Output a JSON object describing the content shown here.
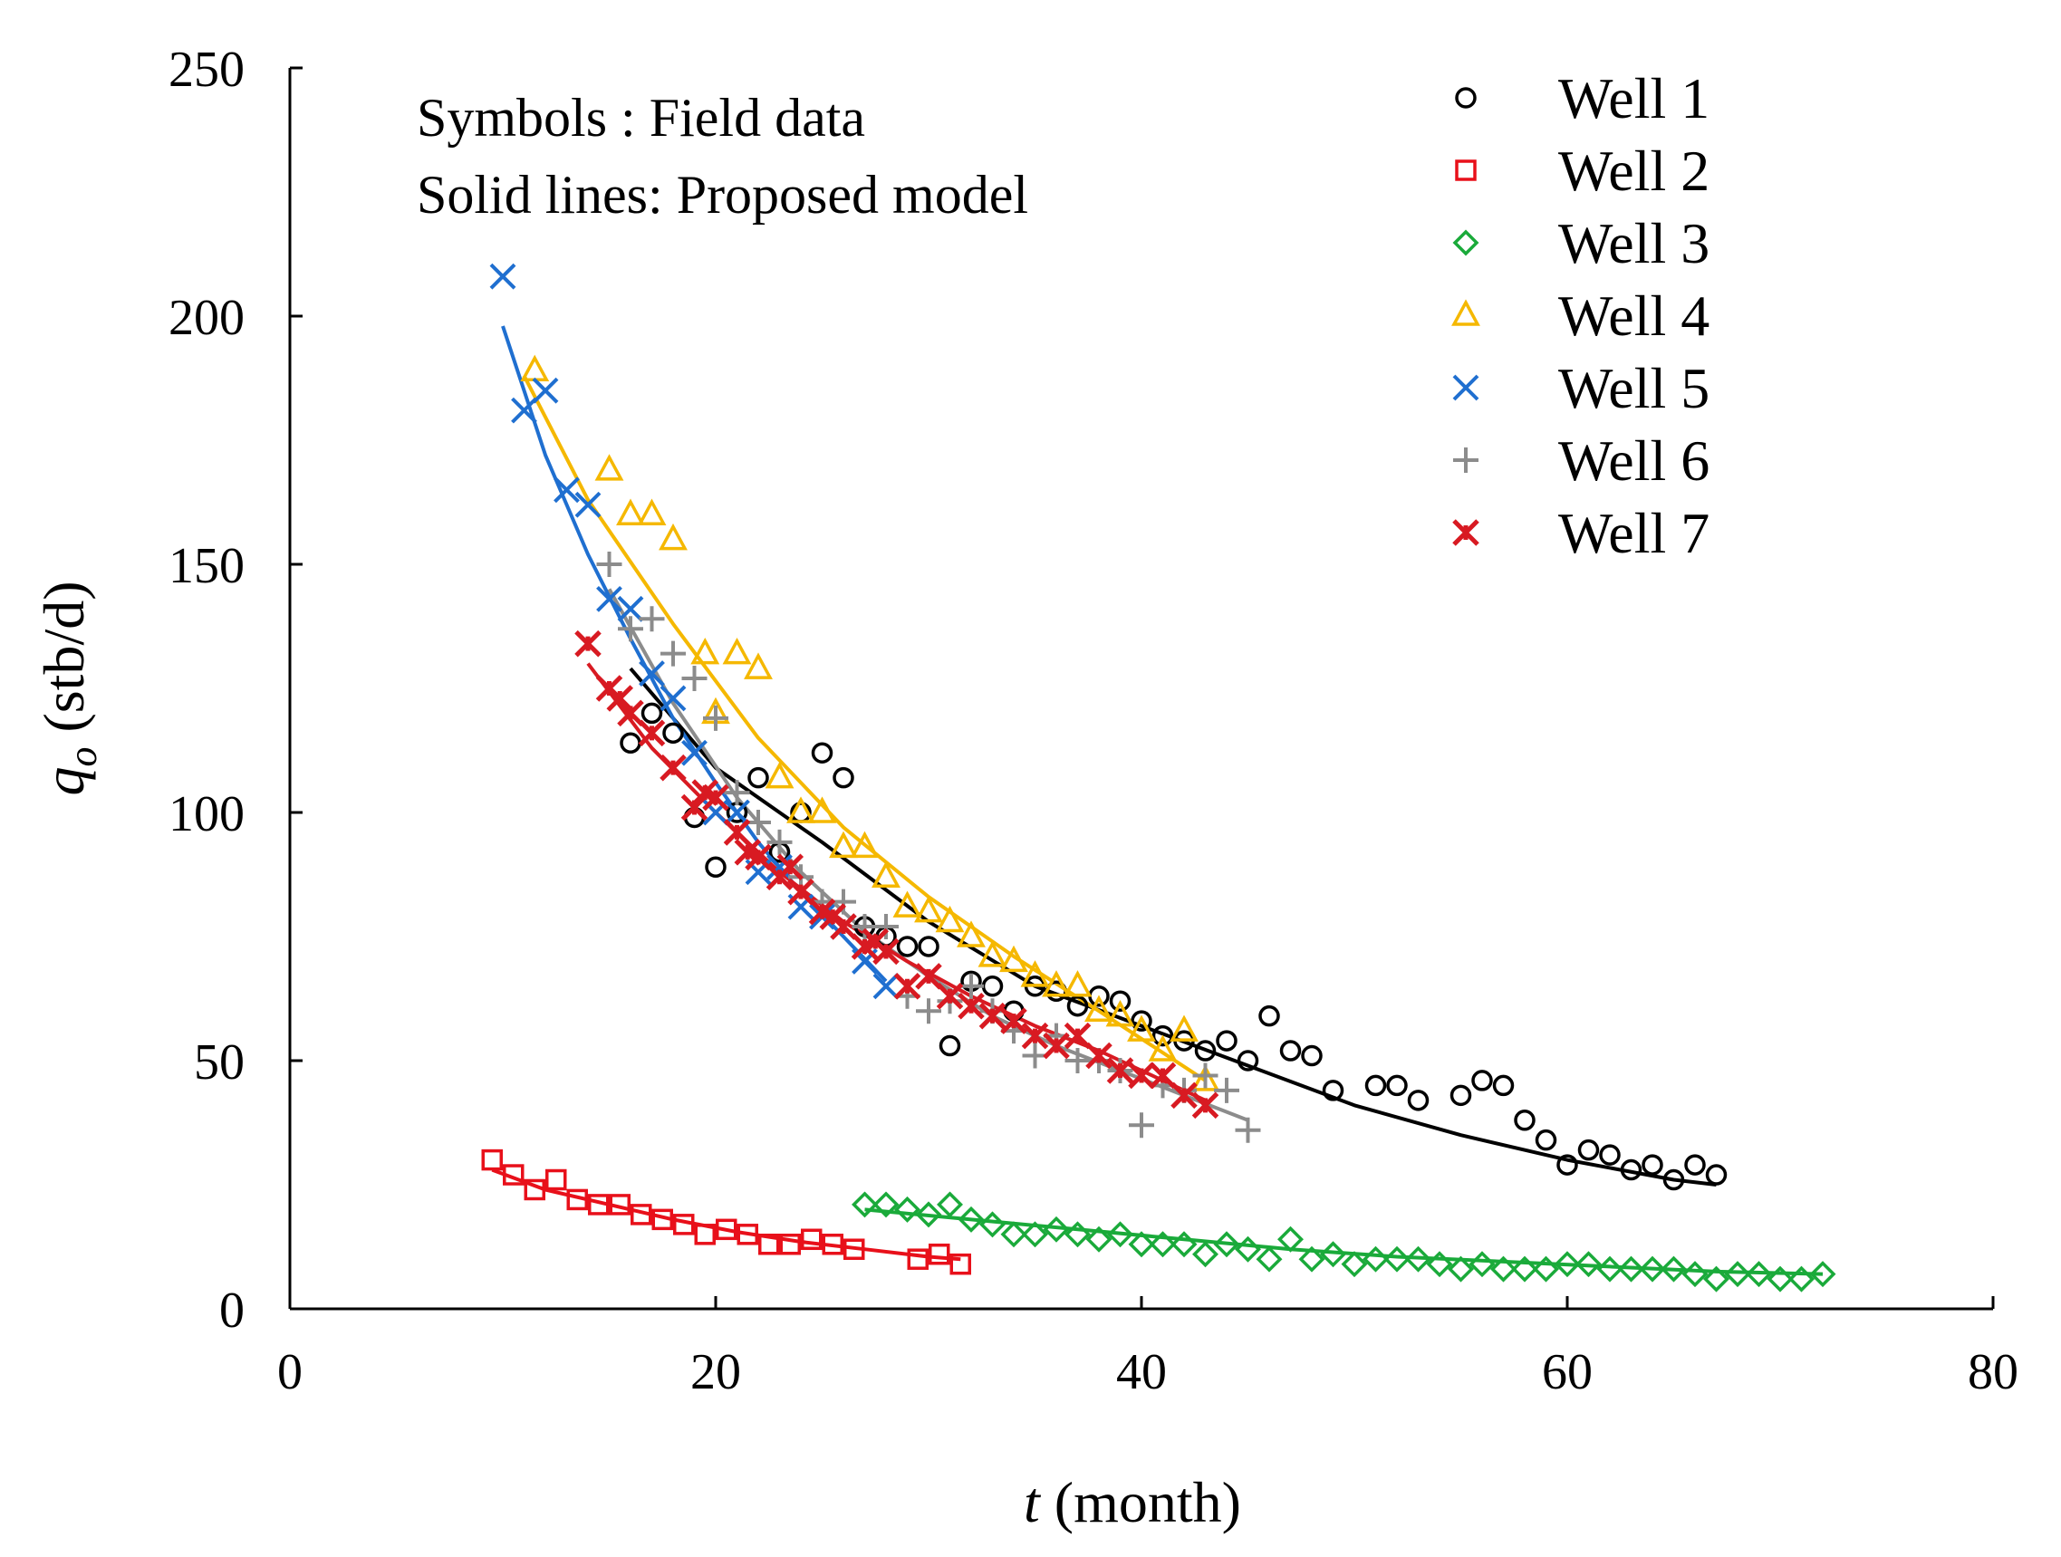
{
  "chart_data": {
    "type": "scatter",
    "title": "",
    "xlabel": {
      "var": "t",
      "unit": " (month)"
    },
    "ylabel": {
      "var": "q",
      "sub": "o",
      "unit": " (stb/d)"
    },
    "xlim": [
      0,
      80
    ],
    "ylim": [
      0,
      250
    ],
    "xticks": [
      0,
      20,
      40,
      60,
      80
    ],
    "yticks": [
      0,
      50,
      100,
      150,
      200,
      250
    ],
    "grid": false,
    "legend_position": "top-right",
    "annotations": [
      "Symbols : Field data",
      "Solid lines: Proposed model"
    ],
    "series": [
      {
        "name": "Well 1",
        "marker": "circle",
        "color": "#000000",
        "x": [
          16,
          17,
          18,
          19,
          20,
          21,
          22,
          23,
          24,
          25,
          26,
          27,
          28,
          29,
          30,
          31,
          32,
          33,
          34,
          35,
          36,
          37,
          38,
          39,
          40,
          41,
          42,
          43,
          44,
          45,
          46,
          47,
          48,
          49,
          51,
          52,
          53,
          55,
          56,
          57,
          58,
          59,
          60,
          61,
          62,
          63,
          64,
          65,
          66,
          67
        ],
        "y": [
          114,
          120,
          116,
          99,
          89,
          100,
          107,
          92,
          100,
          112,
          107,
          77,
          75,
          73,
          73,
          53,
          66,
          65,
          60,
          65,
          64,
          61,
          63,
          62,
          58,
          55,
          54,
          52,
          54,
          50,
          59,
          52,
          51,
          44,
          45,
          45,
          42,
          43,
          46,
          45,
          38,
          34,
          29,
          32,
          31,
          28,
          29,
          26,
          29,
          27
        ],
        "fit_x": [
          16,
          20,
          25,
          30,
          35,
          40,
          45,
          50,
          55,
          60,
          65,
          67
        ],
        "fit_y": [
          129,
          109,
          94,
          78,
          65,
          57,
          49,
          41,
          35,
          30,
          26,
          25
        ]
      },
      {
        "name": "Well 2",
        "marker": "square",
        "color": "#e8101a",
        "x": [
          9.5,
          10.5,
          11.5,
          12.5,
          13.5,
          14.5,
          15.5,
          16.5,
          17.5,
          18.5,
          19.5,
          20.5,
          21.5,
          22.5,
          23.5,
          24.5,
          25.5,
          26.5,
          29.5,
          30.5,
          31.5
        ],
        "y": [
          30,
          27,
          24,
          26,
          22,
          21,
          21,
          19,
          18,
          17,
          15,
          16,
          15,
          13,
          13,
          14,
          13,
          12,
          10,
          11,
          9
        ],
        "fit_x": [
          9.5,
          12,
          15,
          18,
          21,
          24,
          27,
          30,
          31.5
        ],
        "fit_y": [
          28,
          24,
          21,
          18,
          15.5,
          13.5,
          12,
          10.5,
          10
        ]
      },
      {
        "name": "Well 3",
        "marker": "diamond",
        "color": "#1aaa3a",
        "x": [
          27,
          28,
          29,
          30,
          31,
          32,
          33,
          34,
          35,
          36,
          37,
          38,
          39,
          40,
          41,
          42,
          43,
          44,
          45,
          46,
          47,
          48,
          49,
          50,
          51,
          52,
          53,
          54,
          55,
          56,
          57,
          58,
          59,
          60,
          61,
          62,
          63,
          64,
          65,
          66,
          67,
          68,
          69,
          70,
          71,
          72
        ],
        "y": [
          21,
          21,
          20,
          19,
          21,
          18,
          17,
          15,
          15,
          16,
          15,
          14,
          15,
          13,
          13,
          13,
          11,
          13,
          12,
          10,
          14,
          10,
          11,
          9,
          10,
          10,
          10,
          9,
          8,
          9,
          8,
          8,
          8,
          9,
          9,
          8,
          8,
          8,
          8,
          7,
          6,
          7,
          7,
          6,
          6,
          7
        ],
        "fit_x": [
          27,
          32,
          37,
          42,
          47,
          52,
          57,
          62,
          67,
          72
        ],
        "fit_y": [
          20,
          18,
          16,
          14,
          12,
          10.5,
          9.5,
          8.5,
          7.5,
          7
        ]
      },
      {
        "name": "Well 4",
        "marker": "triangle",
        "color": "#f5b800",
        "x": [
          11.5,
          15,
          16,
          17,
          18,
          19.5,
          20,
          21,
          22,
          23,
          24,
          25,
          26,
          27,
          28,
          29,
          30,
          31,
          32,
          33,
          34,
          35,
          36,
          37,
          38,
          39,
          40,
          41,
          42,
          43
        ],
        "y": [
          189,
          169,
          160,
          160,
          155,
          132,
          120,
          132,
          129,
          107,
          100,
          100,
          93,
          93,
          87,
          81,
          80,
          78,
          75,
          71,
          70,
          67,
          65,
          65,
          60,
          59,
          56,
          52,
          56,
          46
        ],
        "fit_x": [
          11,
          14,
          18,
          22,
          26,
          30,
          34,
          38,
          43
        ],
        "fit_y": [
          188,
          163,
          138,
          115,
          97,
          83,
          71,
          60,
          46
        ]
      },
      {
        "name": "Well 5",
        "marker": "x",
        "color": "#1f6fd0",
        "x": [
          10,
          11,
          12,
          13,
          14,
          15,
          16,
          17,
          18,
          19,
          20,
          21,
          22,
          23,
          24,
          25,
          26,
          27,
          28
        ],
        "y": [
          208,
          181,
          185,
          165,
          162,
          143,
          141,
          128,
          123,
          112,
          100,
          100,
          88,
          89,
          81,
          79,
          77,
          70,
          65
        ],
        "fit_x": [
          10,
          12,
          14,
          16,
          18,
          20,
          22,
          24,
          26,
          28
        ],
        "fit_y": [
          198,
          172,
          152,
          135,
          119,
          106,
          94,
          84,
          75,
          66
        ]
      },
      {
        "name": "Well 6",
        "marker": "plus",
        "color": "#8c8c8c",
        "x": [
          15,
          16,
          17,
          18,
          19,
          20,
          21,
          22,
          23,
          24,
          25,
          26,
          27,
          28,
          29,
          30,
          31,
          32,
          33,
          34,
          35,
          36,
          37,
          38,
          39,
          40,
          41,
          42,
          43,
          44,
          45
        ],
        "y": [
          150,
          137,
          139,
          132,
          127,
          119,
          104,
          98,
          94,
          87,
          82,
          82,
          77,
          77,
          63,
          60,
          62,
          65,
          60,
          56,
          51,
          55,
          50,
          50,
          48,
          37,
          45,
          44,
          47,
          44,
          36
        ],
        "fit_x": [
          15,
          18,
          21,
          24,
          27,
          30,
          33,
          36,
          39,
          42,
          45
        ],
        "fit_y": [
          145,
          122,
          103,
          88,
          76,
          67,
          59,
          53,
          48,
          43,
          38
        ]
      },
      {
        "name": "Well 7",
        "marker": "star",
        "color": "#d81a22",
        "x": [
          14,
          15,
          15.5,
          16,
          17,
          18,
          19,
          19.5,
          20,
          21,
          21.5,
          22,
          23,
          23.5,
          24,
          25,
          25.5,
          26,
          27,
          27.5,
          28,
          29,
          30,
          31,
          32,
          33,
          34,
          35,
          36,
          37,
          38,
          39,
          40,
          41,
          42,
          43
        ],
        "y": [
          134,
          125,
          123,
          120,
          116,
          109,
          101,
          104,
          103,
          96,
          92,
          91,
          87,
          89,
          84,
          80,
          79,
          77,
          73,
          74,
          72,
          65,
          67,
          63,
          61,
          59,
          58,
          55,
          53,
          55,
          51,
          48,
          47,
          47,
          43,
          41
        ],
        "fit_x": [
          14,
          17,
          20,
          23,
          26,
          29,
          32,
          35,
          38,
          41,
          43
        ],
        "fit_y": [
          130,
          113,
          100,
          88,
          78,
          70,
          63,
          57,
          52,
          46,
          42
        ]
      }
    ]
  }
}
